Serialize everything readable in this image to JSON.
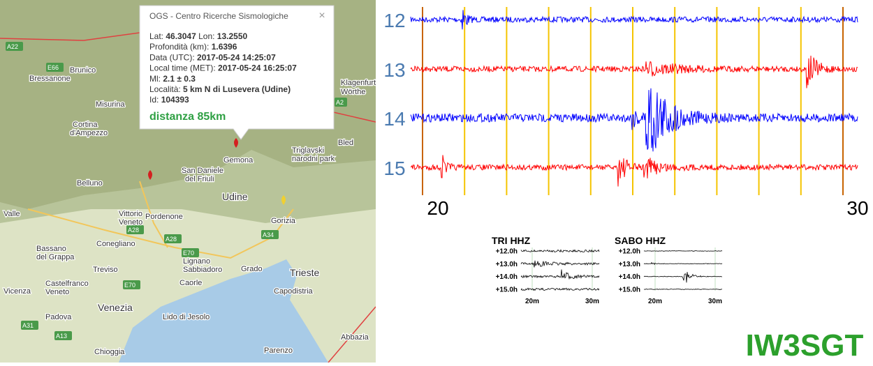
{
  "popup": {
    "title": "OGS - Centro Ricerche Sismologiche",
    "close": "×",
    "lines": [
      [
        {
          "label": "Lat:",
          "value": "46.3047"
        },
        {
          "label": "Lon:",
          "value": "13.2550"
        }
      ],
      [
        {
          "label": "Profondità (km):",
          "value": "1.6396"
        }
      ],
      [
        {
          "label": "Data (UTC):",
          "value": "2017-05-24 14:25:07"
        }
      ],
      [
        {
          "label": "Local time (MET):",
          "value": "2017-05-24 16:25:07"
        }
      ],
      [
        {
          "label": "Ml:",
          "value": "2.1 ± 0.3"
        }
      ],
      [
        {
          "label": "Località:",
          "value": "5 km N di Lusevera (Udine)"
        }
      ],
      [
        {
          "label": "Id:",
          "value": "104393"
        }
      ]
    ],
    "distance": "distanza 85km"
  },
  "map": {
    "labels": [
      "A22",
      "E66",
      "Brunico",
      "Bressanone",
      "Misurina",
      "Cortina",
      "d'Ampezzo",
      "Klagenfurt",
      "Wörthe",
      "A2",
      "Bled",
      "Triglavski",
      "narodni park",
      "Gemona",
      "San Daniele",
      "del Friuli",
      "Belluno",
      "Udine",
      "Pordenone",
      "Gorizia",
      "A28",
      "A28",
      "A34",
      "Conegliano",
      "Bassano",
      "del Grappa",
      "E70",
      "Lignano",
      "Sabbiadoro",
      "Grado",
      "Trieste",
      "Treviso",
      "Castelfranco",
      "Veneto",
      "E70",
      "Caorle",
      "Capodistria",
      "Vicenza",
      "Venezia",
      "Padova",
      "Lido di Jesolo",
      "A31",
      "A13",
      "Abbazia",
      "Chioggia",
      "Parenzo",
      "Vittorio",
      "Veneto",
      "Valle"
    ]
  },
  "seismogram": {
    "rows": [
      "12",
      "13",
      "14",
      "15"
    ],
    "x_labels": [
      "20",
      "30"
    ]
  },
  "insets": [
    {
      "title": "TRI HHZ",
      "rows": [
        "+12.0h",
        "+13.0h",
        "+14.0h",
        "+15.0h"
      ],
      "x_labels": [
        "20m",
        "30m"
      ]
    },
    {
      "title": "SABO HHZ",
      "rows": [
        "+12.0h",
        "+13.0h",
        "+14.0h",
        "+15.0h"
      ],
      "x_labels": [
        "20m",
        "30m"
      ]
    }
  ],
  "watermark": "IW3SGT"
}
